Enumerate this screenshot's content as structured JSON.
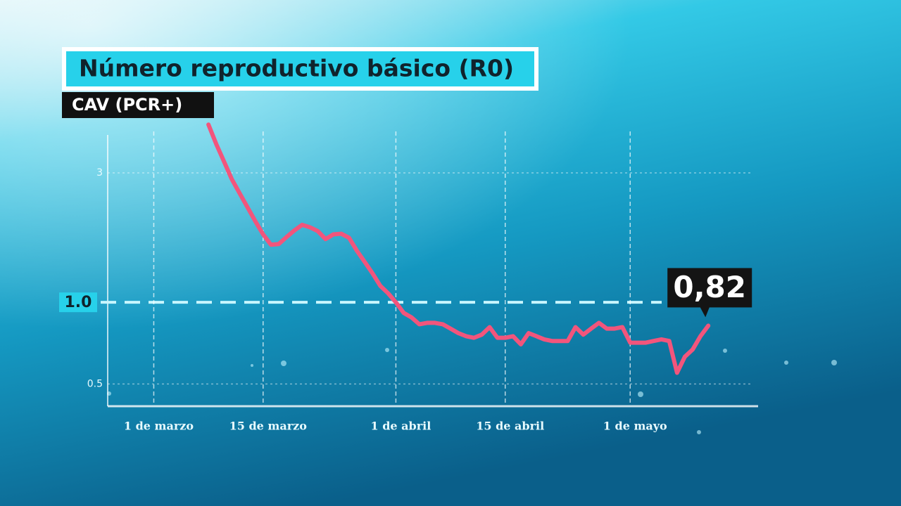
{
  "chart_data": {
    "type": "line",
    "title": "Número reproductivo básico (R0)",
    "subtitle": "CAV (PCR+)",
    "log_scale_y": true,
    "grid": true,
    "xlim": [
      -5.9,
      77.2
    ],
    "xticks": [
      {
        "value": 0,
        "label": "1 de marzo"
      },
      {
        "value": 14,
        "label": "15 de marzo"
      },
      {
        "value": 31,
        "label": "1 de abril"
      },
      {
        "value": 45,
        "label": "15 de abril"
      },
      {
        "value": 61,
        "label": "1 de mayo"
      }
    ],
    "ylim": [
      0.414,
      4.14
    ],
    "yticks": [
      0.5,
      {
        "value": 1,
        "label": "1.0",
        "highlight": true
      },
      3
    ],
    "series": [
      {
        "name": "R0",
        "color": "#f2557c",
        "x": [
          7,
          8,
          9,
          10,
          11,
          12,
          13,
          14,
          15,
          16,
          17,
          18,
          19,
          20,
          21,
          22,
          23,
          24,
          25,
          26,
          27,
          28,
          29,
          30,
          31,
          32,
          33,
          34,
          35,
          36,
          37,
          38,
          39,
          40,
          41,
          42,
          43,
          44,
          45,
          46,
          47,
          48,
          49,
          50,
          51,
          52,
          53,
          54,
          55,
          56,
          57,
          58,
          59,
          60,
          61,
          62,
          63,
          64,
          65,
          66,
          67,
          68,
          69,
          70,
          71
        ],
        "values": [
          4.52,
          3.83,
          3.3,
          2.84,
          2.52,
          2.24,
          1.99,
          1.78,
          1.63,
          1.64,
          1.74,
          1.84,
          1.93,
          1.89,
          1.83,
          1.71,
          1.78,
          1.79,
          1.73,
          1.55,
          1.41,
          1.28,
          1.15,
          1.08,
          1.0,
          0.914,
          0.88,
          0.83,
          0.84,
          0.84,
          0.83,
          0.8,
          0.77,
          0.75,
          0.74,
          0.76,
          0.81,
          0.74,
          0.74,
          0.75,
          0.7,
          0.77,
          0.75,
          0.73,
          0.72,
          0.72,
          0.72,
          0.81,
          0.76,
          0.8,
          0.84,
          0.8,
          0.8,
          0.81,
          0.71,
          0.71,
          0.71,
          0.72,
          0.73,
          0.72,
          0.55,
          0.63,
          0.67,
          0.75,
          0.82
        ],
        "value_labels": [
          null,
          null,
          null,
          null,
          null,
          null,
          null,
          null,
          null,
          null,
          null,
          null,
          null,
          null,
          null,
          null,
          null,
          null,
          null,
          null,
          null,
          null,
          null,
          null,
          null,
          null,
          null,
          null,
          null,
          null,
          null,
          null,
          null,
          null,
          null,
          null,
          null,
          null,
          null,
          null,
          null,
          null,
          null,
          null,
          null,
          null,
          null,
          null,
          null,
          null,
          null,
          null,
          null,
          null,
          null,
          null,
          null,
          null,
          null,
          null,
          null,
          null,
          null,
          null,
          "0,82"
        ]
      }
    ]
  }
}
